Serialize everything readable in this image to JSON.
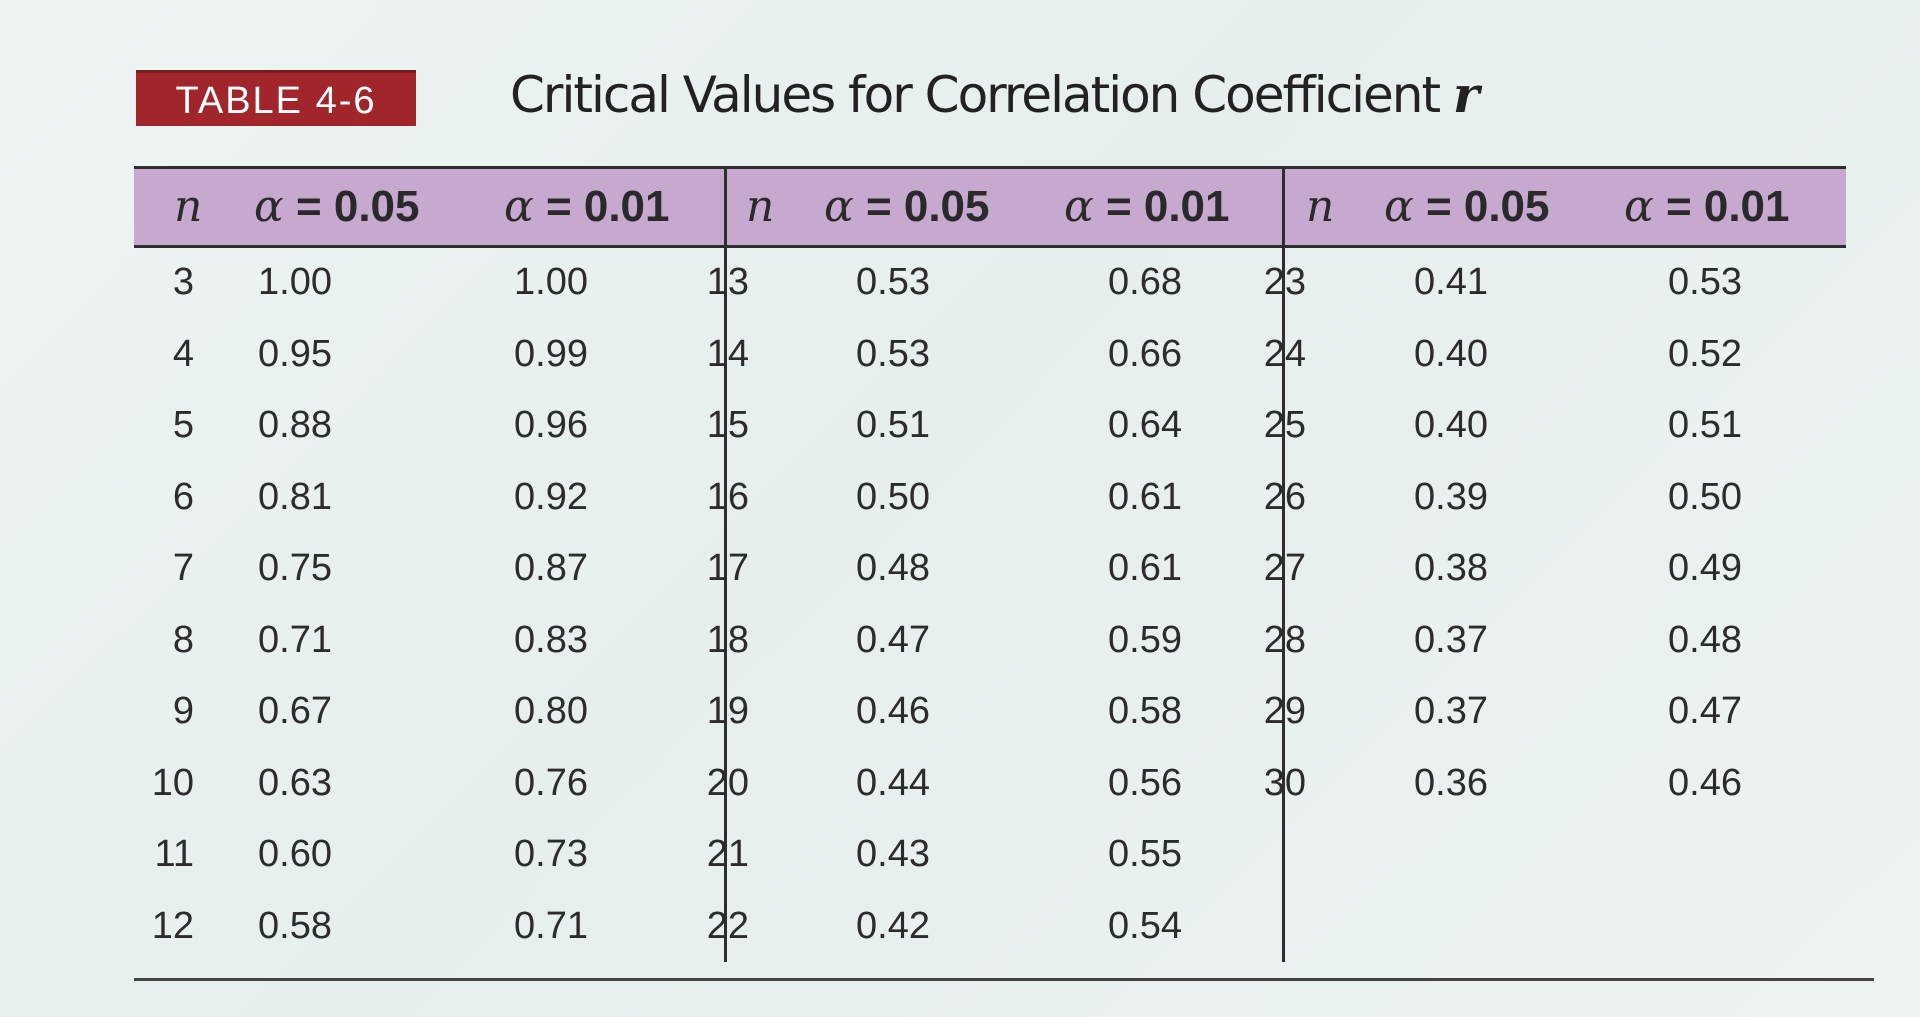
{
  "table_label": "TABLE 4-6",
  "title_text": "Critical Values for Correlation Coefficient ",
  "title_var": "r",
  "header": {
    "n": "n",
    "alpha": "α",
    "eq05": " = 0.05",
    "eq01": " = 0.01"
  },
  "columns": [
    {
      "rows": [
        {
          "n": "3",
          "a05": "1.00",
          "a01": "1.00"
        },
        {
          "n": "4",
          "a05": "0.95",
          "a01": "0.99"
        },
        {
          "n": "5",
          "a05": "0.88",
          "a01": "0.96"
        },
        {
          "n": "6",
          "a05": "0.81",
          "a01": "0.92"
        },
        {
          "n": "7",
          "a05": "0.75",
          "a01": "0.87"
        },
        {
          "n": "8",
          "a05": "0.71",
          "a01": "0.83"
        },
        {
          "n": "9",
          "a05": "0.67",
          "a01": "0.80"
        },
        {
          "n": "10",
          "a05": "0.63",
          "a01": "0.76"
        },
        {
          "n": "11",
          "a05": "0.60",
          "a01": "0.73"
        },
        {
          "n": "12",
          "a05": "0.58",
          "a01": "0.71"
        }
      ]
    },
    {
      "rows": [
        {
          "n": "13",
          "a05": "0.53",
          "a01": "0.68"
        },
        {
          "n": "14",
          "a05": "0.53",
          "a01": "0.66"
        },
        {
          "n": "15",
          "a05": "0.51",
          "a01": "0.64"
        },
        {
          "n": "16",
          "a05": "0.50",
          "a01": "0.61"
        },
        {
          "n": "17",
          "a05": "0.48",
          "a01": "0.61"
        },
        {
          "n": "18",
          "a05": "0.47",
          "a01": "0.59"
        },
        {
          "n": "19",
          "a05": "0.46",
          "a01": "0.58"
        },
        {
          "n": "20",
          "a05": "0.44",
          "a01": "0.56"
        },
        {
          "n": "21",
          "a05": "0.43",
          "a01": "0.55"
        },
        {
          "n": "22",
          "a05": "0.42",
          "a01": "0.54"
        }
      ]
    },
    {
      "rows": [
        {
          "n": "23",
          "a05": "0.41",
          "a01": "0.53"
        },
        {
          "n": "24",
          "a05": "0.40",
          "a01": "0.52"
        },
        {
          "n": "25",
          "a05": "0.40",
          "a01": "0.51"
        },
        {
          "n": "26",
          "a05": "0.39",
          "a01": "0.50"
        },
        {
          "n": "27",
          "a05": "0.38",
          "a01": "0.49"
        },
        {
          "n": "28",
          "a05": "0.37",
          "a01": "0.48"
        },
        {
          "n": "29",
          "a05": "0.37",
          "a01": "0.47"
        },
        {
          "n": "30",
          "a05": "0.36",
          "a01": "0.46"
        }
      ]
    }
  ],
  "colors": {
    "badge": "#a1262c",
    "header_band": "#c7a9cf",
    "background": "#eaf1f0"
  }
}
